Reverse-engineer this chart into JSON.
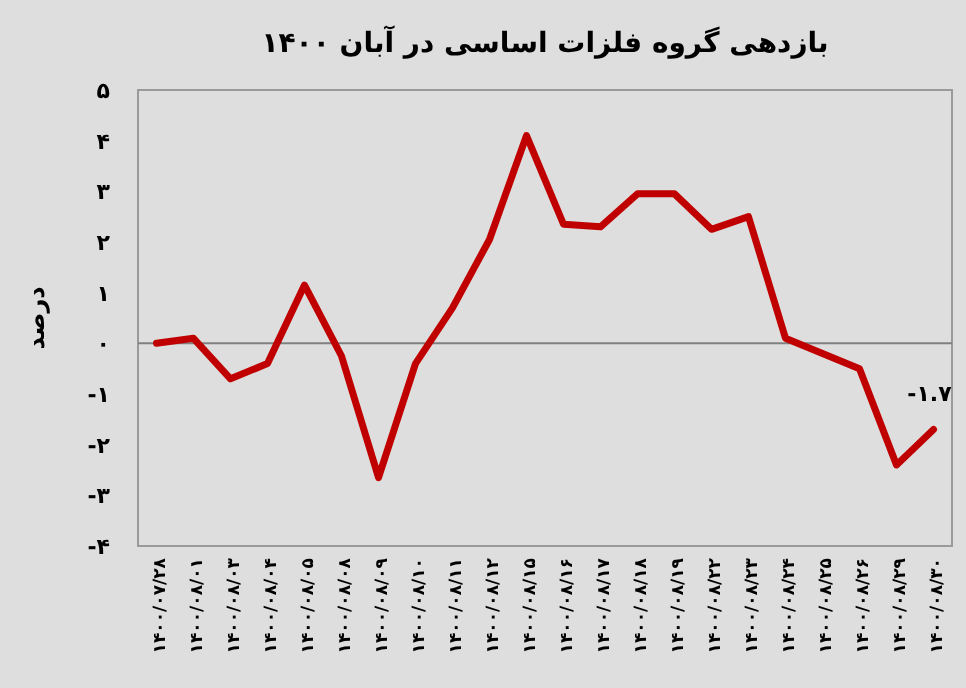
{
  "chart_data": {
    "type": "line",
    "title": "بازدهی گروه فلزات اساسی در آبان ۱۴۰۰",
    "ylabel": "درصد",
    "categories": [
      "۱۴۰۰/۰۷/۲۸",
      "۱۴۰۰/۰۸/۰۱",
      "۱۴۰۰/۰۸/۰۳",
      "۱۴۰۰/۰۸/۰۴",
      "۱۴۰۰/۰۸/۰۵",
      "۱۴۰۰/۰۸/۰۸",
      "۱۴۰۰/۰۸/۰۹",
      "۱۴۰۰/۰۸/۱۰",
      "۱۴۰۰/۰۸/۱۱",
      "۱۴۰۰/۰۸/۱۲",
      "۱۴۰۰/۰۸/۱۵",
      "۱۴۰۰/۰۸/۱۶",
      "۱۴۰۰/۰۸/۱۷",
      "۱۴۰۰/۰۸/۱۸",
      "۱۴۰۰/۰۸/۱۹",
      "۱۴۰۰/۰۸/۲۲",
      "۱۴۰۰/۰۸/۲۳",
      "۱۴۰۰/۰۸/۲۴",
      "۱۴۰۰/۰۸/۲۵",
      "۱۴۰۰/۰۸/۲۶",
      "۱۴۰۰/۰۸/۲۹",
      "۱۴۰۰/۰۸/۳۰"
    ],
    "series": [
      {
        "color": "#c00000",
        "values": [
          0,
          0.1,
          -0.7,
          -0.4,
          1.15,
          -0.25,
          -2.65,
          -0.4,
          0.7,
          2.05,
          4.1,
          2.35,
          2.3,
          2.95,
          2.95,
          2.25,
          2.5,
          0.1,
          -0.2,
          -0.5,
          -2.4,
          -1.7
        ],
        "value_labels": [
          null,
          null,
          null,
          null,
          null,
          null,
          null,
          null,
          null,
          null,
          null,
          null,
          null,
          null,
          null,
          null,
          null,
          null,
          null,
          null,
          null,
          "-۱.۷"
        ]
      }
    ],
    "ylim": [
      -4,
      5
    ],
    "yticks": [
      {
        "value": -4,
        "label": "-۴"
      },
      {
        "value": -3,
        "label": "-۳"
      },
      {
        "value": -2,
        "label": "-۲"
      },
      {
        "value": -1,
        "label": "-۱"
      },
      {
        "value": 0,
        "label": "۰"
      },
      {
        "value": 1,
        "label": "۱"
      },
      {
        "value": 2,
        "label": "۲"
      },
      {
        "value": 3,
        "label": "۳"
      },
      {
        "value": 4,
        "label": "۴"
      },
      {
        "value": 5,
        "label": "۵"
      }
    ],
    "ref_lines": [
      {
        "axis": "y",
        "value": 0,
        "color": "#808080"
      }
    ],
    "grid": false,
    "marker": "none",
    "line_style": "solid"
  }
}
